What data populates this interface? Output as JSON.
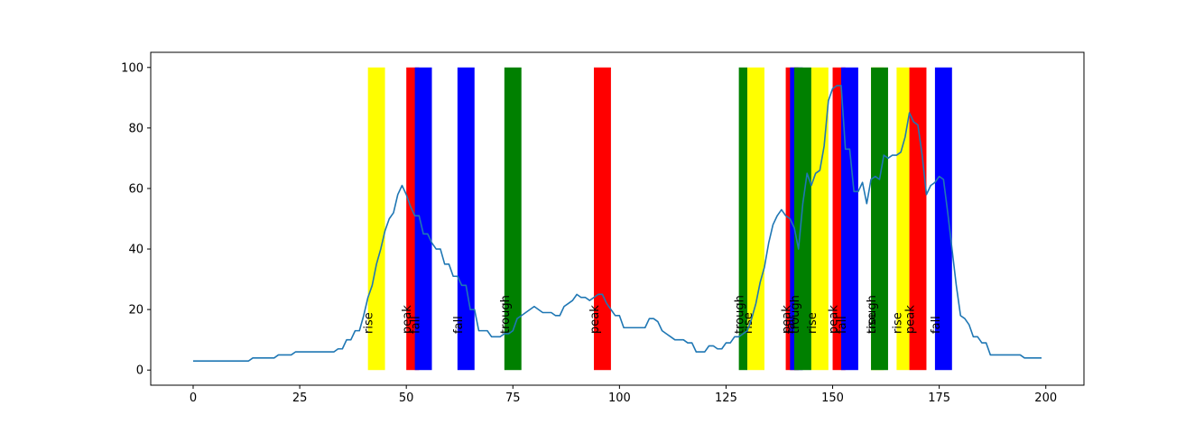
{
  "chart_data": {
    "type": "line",
    "title": "",
    "xlabel": "",
    "ylabel": "",
    "xlim": [
      -9.95,
      208.95
    ],
    "ylim": [
      -5,
      105
    ],
    "xticks": [
      0,
      25,
      50,
      75,
      100,
      125,
      150,
      175,
      200
    ],
    "yticks": [
      0,
      20,
      40,
      60,
      80,
      100
    ],
    "grid": false,
    "legend": "none",
    "line_color": "#1f77b4",
    "band_top": 100,
    "band_bottom": 0,
    "band_label_y": 12,
    "band_colors": {
      "rise": "#ffff00",
      "peak": "#ff0000",
      "fall": "#0000ff",
      "trough": "#008000"
    },
    "bands": [
      {
        "label": "rise",
        "x0": 41,
        "x1": 45
      },
      {
        "label": "peak",
        "x0": 50,
        "x1": 53
      },
      {
        "label": "fall",
        "x0": 52,
        "x1": 56
      },
      {
        "label": "fall",
        "x0": 62,
        "x1": 66
      },
      {
        "label": "trough",
        "x0": 73,
        "x1": 77
      },
      {
        "label": "peak",
        "x0": 94,
        "x1": 98
      },
      {
        "label": "trough",
        "x0": 128,
        "x1": 130
      },
      {
        "label": "rise",
        "x0": 130,
        "x1": 134
      },
      {
        "label": "peak",
        "x0": 139,
        "x1": 142
      },
      {
        "label": "fall",
        "x0": 140,
        "x1": 143
      },
      {
        "label": "trough",
        "x0": 141,
        "x1": 145
      },
      {
        "label": "rise",
        "x0": 145,
        "x1": 149
      },
      {
        "label": "peak",
        "x0": 150,
        "x1": 153
      },
      {
        "label": "fall",
        "x0": 152,
        "x1": 156
      },
      {
        "label": "rise",
        "x0": 159,
        "x1": 162
      },
      {
        "label": "trough",
        "x0": 159,
        "x1": 163
      },
      {
        "label": "rise",
        "x0": 165,
        "x1": 168
      },
      {
        "label": "peak",
        "x0": 168,
        "x1": 172
      },
      {
        "label": "fall",
        "x0": 174,
        "x1": 178
      }
    ],
    "series": [
      {
        "x": [
          0,
          1,
          2,
          3,
          4,
          5,
          6,
          7,
          8,
          9,
          10,
          11,
          12,
          13,
          14,
          15,
          16,
          17,
          18,
          19,
          20,
          21,
          22,
          23,
          24,
          25,
          26,
          27,
          28,
          29,
          30,
          31,
          32,
          33,
          34,
          35,
          36,
          37,
          38,
          39,
          40,
          41,
          42,
          43,
          44,
          45,
          46,
          47,
          48,
          49,
          50,
          51,
          52,
          53,
          54,
          55,
          56,
          57,
          58,
          59,
          60,
          61,
          62,
          63,
          64,
          65,
          66,
          67,
          68,
          69,
          70,
          71,
          72,
          73,
          74,
          75,
          76,
          77,
          78,
          79,
          80,
          81,
          82,
          83,
          84,
          85,
          86,
          87,
          88,
          89,
          90,
          91,
          92,
          93,
          94,
          95,
          96,
          97,
          98,
          99,
          100,
          101,
          102,
          103,
          104,
          105,
          106,
          107,
          108,
          109,
          110,
          111,
          112,
          113,
          114,
          115,
          116,
          117,
          118,
          119,
          120,
          121,
          122,
          123,
          124,
          125,
          126,
          127,
          128,
          129,
          130,
          131,
          132,
          133,
          134,
          135,
          136,
          137,
          138,
          139,
          140,
          141,
          142,
          143,
          144,
          145,
          146,
          147,
          148,
          149,
          150,
          151,
          152,
          153,
          154,
          155,
          156,
          157,
          158,
          159,
          160,
          161,
          162,
          163,
          164,
          165,
          166,
          167,
          168,
          169,
          170,
          171,
          172,
          173,
          174,
          175,
          176,
          177,
          178,
          179,
          180,
          181,
          182,
          183,
          184,
          185,
          186,
          187,
          188,
          189,
          190,
          191,
          192,
          193,
          194,
          195,
          196,
          197,
          198,
          199
        ],
        "values": [
          3,
          3,
          3,
          3,
          3,
          3,
          3,
          3,
          3,
          3,
          3,
          3,
          3,
          3,
          4,
          4,
          4,
          4,
          4,
          4,
          5,
          5,
          5,
          5,
          6,
          6,
          6,
          6,
          6,
          6,
          6,
          6,
          6,
          6,
          7,
          7,
          10,
          10,
          13,
          13,
          18,
          24,
          28,
          35,
          40,
          46,
          50,
          52,
          58,
          61,
          58,
          54,
          51,
          51,
          45,
          45,
          42,
          40,
          40,
          35,
          35,
          31,
          31,
          28,
          28,
          20,
          20,
          13,
          13,
          13,
          11,
          11,
          11,
          12,
          12,
          13,
          17,
          18,
          19,
          20,
          21,
          20,
          19,
          19,
          19,
          18,
          18,
          21,
          22,
          23,
          25,
          24,
          24,
          23,
          24,
          25,
          25,
          22,
          20,
          18,
          18,
          14,
          14,
          14,
          14,
          14,
          14,
          17,
          17,
          16,
          13,
          12,
          11,
          10,
          10,
          10,
          9,
          9,
          6,
          6,
          6,
          8,
          8,
          7,
          7,
          9,
          9,
          11,
          11,
          12,
          13,
          17,
          22,
          29,
          34,
          42,
          48,
          51,
          53,
          51,
          50,
          47,
          40,
          55,
          65,
          61,
          65,
          66,
          74,
          89,
          93,
          94,
          94,
          73,
          73,
          59,
          59,
          62,
          55,
          63,
          64,
          63,
          71,
          70,
          71,
          71,
          72,
          77,
          85,
          82,
          81,
          71,
          58,
          61,
          62,
          64,
          63,
          52,
          40,
          28,
          18,
          17,
          15,
          11,
          11,
          9,
          9,
          5,
          5,
          5,
          5,
          5,
          5,
          5,
          5,
          4,
          4,
          4,
          4,
          4
        ]
      }
    ]
  }
}
